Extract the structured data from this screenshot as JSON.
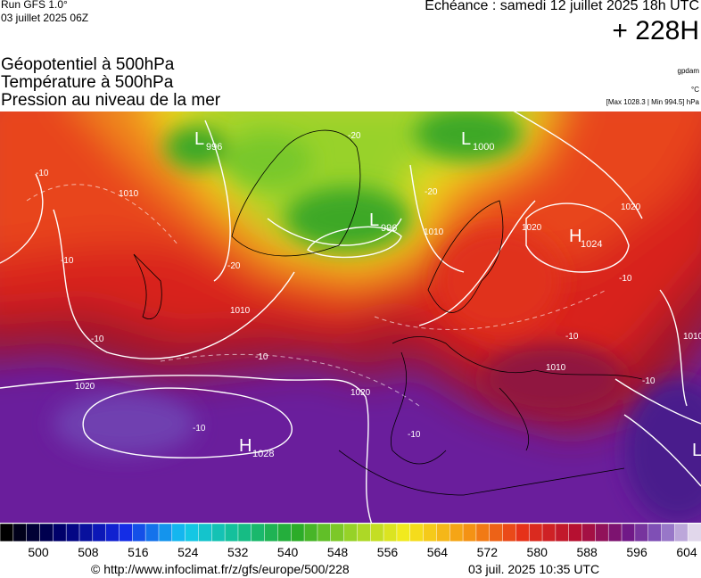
{
  "header": {
    "run": "Run GFS 1.0°",
    "run_date": "03 juillet 2025 06Z",
    "valid": "Echéance : samedi 12 juillet 2025 18h UTC",
    "lead": "+ 228H",
    "fields": [
      "Géopotentiel à 500hPa",
      "Température à 500hPa",
      "Pression au niveau de la mer"
    ],
    "units": [
      "gpdam",
      "°C"
    ],
    "pressure_range": "[Max 1028.3 | Min 994.5] hPa"
  },
  "map": {
    "centers": [
      {
        "kind": "L",
        "value": "996"
      },
      {
        "kind": "L",
        "value": "1000"
      },
      {
        "kind": "L",
        "value": "996"
      },
      {
        "kind": "H",
        "value": "1024"
      },
      {
        "kind": "H",
        "value": "1028"
      },
      {
        "kind": "L",
        "value": ""
      }
    ],
    "contour_labels": [
      "1010",
      "1020",
      "1010",
      "1020",
      "1020",
      "1010",
      "1010",
      "1010",
      "1020",
      "-20",
      "-20",
      "-10",
      "-10",
      "-10",
      "-10",
      "-10",
      "-10",
      "-10",
      "-10",
      "-20",
      "-10"
    ]
  },
  "colorbar": {
    "labels": [
      "500",
      "508",
      "516",
      "524",
      "532",
      "540",
      "548",
      "556",
      "564",
      "572",
      "580",
      "588",
      "596",
      "604"
    ]
  },
  "footer": {
    "url": "© http://www.infoclimat.fr/z/gfs/europe/500/228",
    "generated": "03 juil. 2025 10:35 UTC"
  }
}
